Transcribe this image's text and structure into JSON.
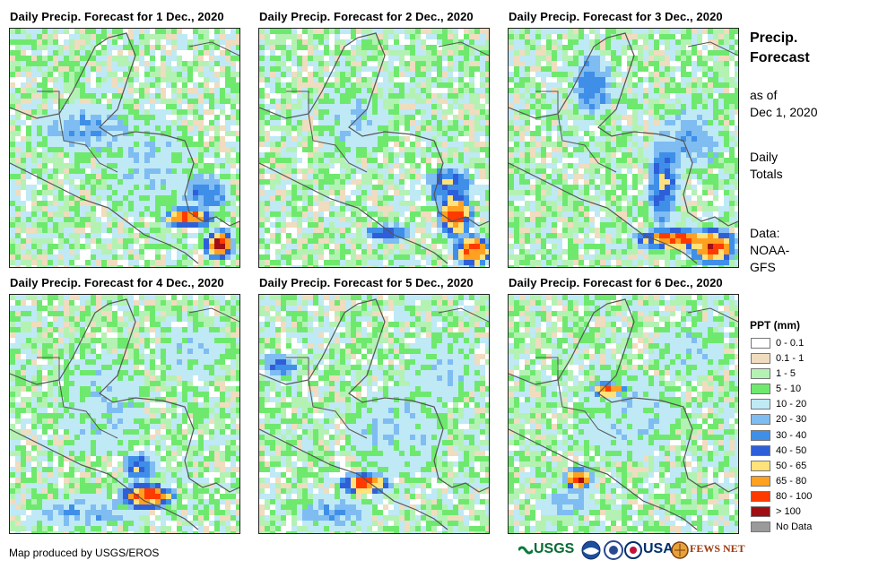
{
  "panels": [
    {
      "title": "Daily Precip. Forecast for 1 Dec., 2020"
    },
    {
      "title": "Daily Precip. Forecast for 2 Dec., 2020"
    },
    {
      "title": "Daily Precip. Forecast for 3 Dec., 2020"
    },
    {
      "title": "Daily Precip. Forecast for 4 Dec., 2020"
    },
    {
      "title": "Daily Precip. Forecast for 5 Dec., 2020"
    },
    {
      "title": "Daily Precip. Forecast for 6 Dec., 2020"
    }
  ],
  "sidebar": {
    "title_line1": "Precip.",
    "title_line2": "Forecast",
    "asof_line1": "as of",
    "asof_line2": "Dec 1, 2020",
    "daily_line1": "Daily",
    "daily_line2": "Totals",
    "data_line1": "Data:",
    "data_line2": "NOAA-",
    "data_line3": "GFS"
  },
  "legend": {
    "title": "PPT (mm)",
    "items": [
      {
        "label": "0 - 0.1",
        "color": "#ffffff"
      },
      {
        "label": "0.1 - 1",
        "color": "#f0dcbe"
      },
      {
        "label": "1 - 5",
        "color": "#b3f2b3"
      },
      {
        "label": "5 - 10",
        "color": "#6ee96e"
      },
      {
        "label": "10 - 20",
        "color": "#bfe9f5"
      },
      {
        "label": "20 - 30",
        "color": "#7fbcf2"
      },
      {
        "label": "30 - 40",
        "color": "#3f8fe8"
      },
      {
        "label": "40 - 50",
        "color": "#2f5fd8"
      },
      {
        "label": "50 - 65",
        "color": "#ffe27a"
      },
      {
        "label": "65 - 80",
        "color": "#ffa020"
      },
      {
        "label": "80 - 100",
        "color": "#ff3a00"
      },
      {
        "label": "> 100",
        "color": "#a00f14"
      },
      {
        "label": "No Data",
        "color": "#9a9a9a"
      }
    ]
  },
  "credit": "Map produced by USGS/EROS",
  "logos": {
    "usgs": "USGS",
    "usaid": "USAID",
    "fewsnet": "FEWS NET"
  }
}
